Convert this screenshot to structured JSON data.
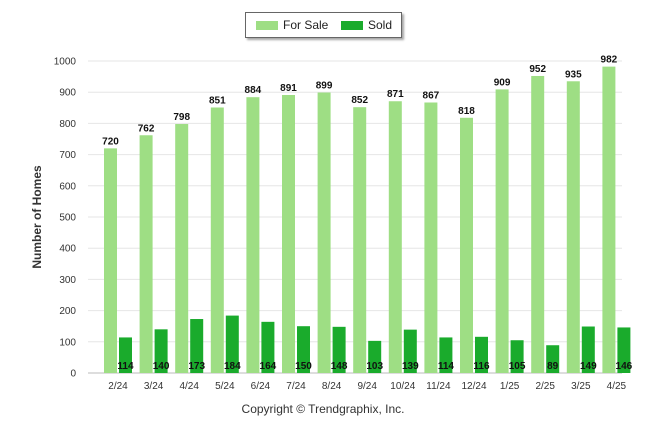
{
  "chart_data": {
    "type": "bar",
    "categories": [
      "2/24",
      "3/24",
      "4/24",
      "5/24",
      "6/24",
      "7/24",
      "8/24",
      "9/24",
      "10/24",
      "11/24",
      "12/24",
      "1/25",
      "2/25",
      "3/25",
      "4/25"
    ],
    "series": [
      {
        "name": "For Sale",
        "color": "#9ede84",
        "values": [
          720,
          762,
          798,
          851,
          884,
          891,
          899,
          852,
          871,
          867,
          818,
          909,
          952,
          935,
          982
        ]
      },
      {
        "name": "Sold",
        "color": "#1aab2c",
        "values": [
          114,
          140,
          173,
          184,
          164,
          150,
          148,
          103,
          139,
          114,
          116,
          105,
          89,
          149,
          146
        ]
      }
    ],
    "ylabel": "Number of Homes",
    "ylim": [
      0,
      1000
    ],
    "yticks": [
      0,
      100,
      200,
      300,
      400,
      500,
      600,
      700,
      800,
      900,
      1000
    ],
    "legend_position": "top-center",
    "grid": true
  },
  "footer": {
    "copyright": "Copyright © Trendgraphix, Inc."
  }
}
